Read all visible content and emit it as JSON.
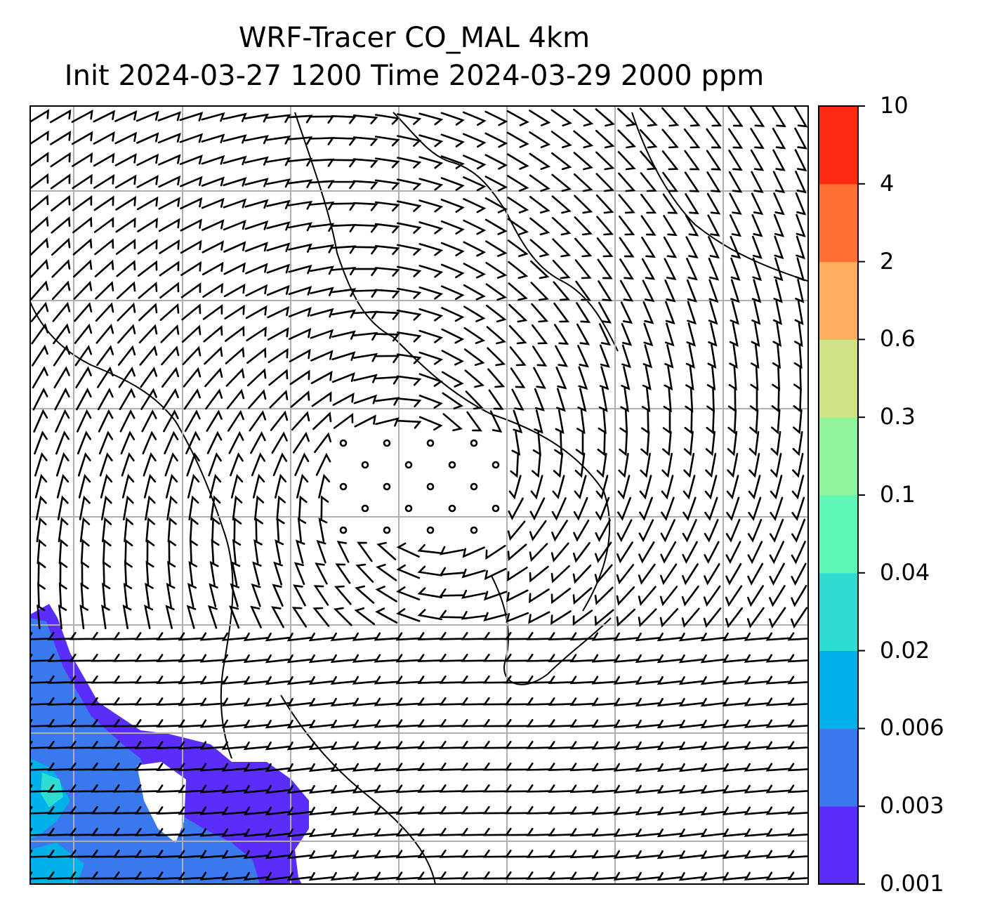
{
  "title": {
    "line1": "WRF-Tracer CO_MAL 4km",
    "line2": "Init 2024-03-27 1200 Time 2024-03-29 2000 ppm"
  },
  "colorbar": {
    "levels": [
      "0.001",
      "0.003",
      "0.006",
      "0.02",
      "0.04",
      "0.1",
      "0.3",
      "0.6",
      "2",
      "4",
      "10"
    ],
    "colors": [
      "#5b2dfb",
      "#3a78ee",
      "#00b2e8",
      "#2fdcd2",
      "#5ff7b8",
      "#8ff49b",
      "#cfe285",
      "#ffad5f",
      "#ff7035",
      "#ff2a14"
    ]
  },
  "map": {
    "background_color": "#ffffff",
    "gridline_color": "#b0b0b0",
    "coastline_color": "#000000",
    "barb_color": "#000000"
  }
}
